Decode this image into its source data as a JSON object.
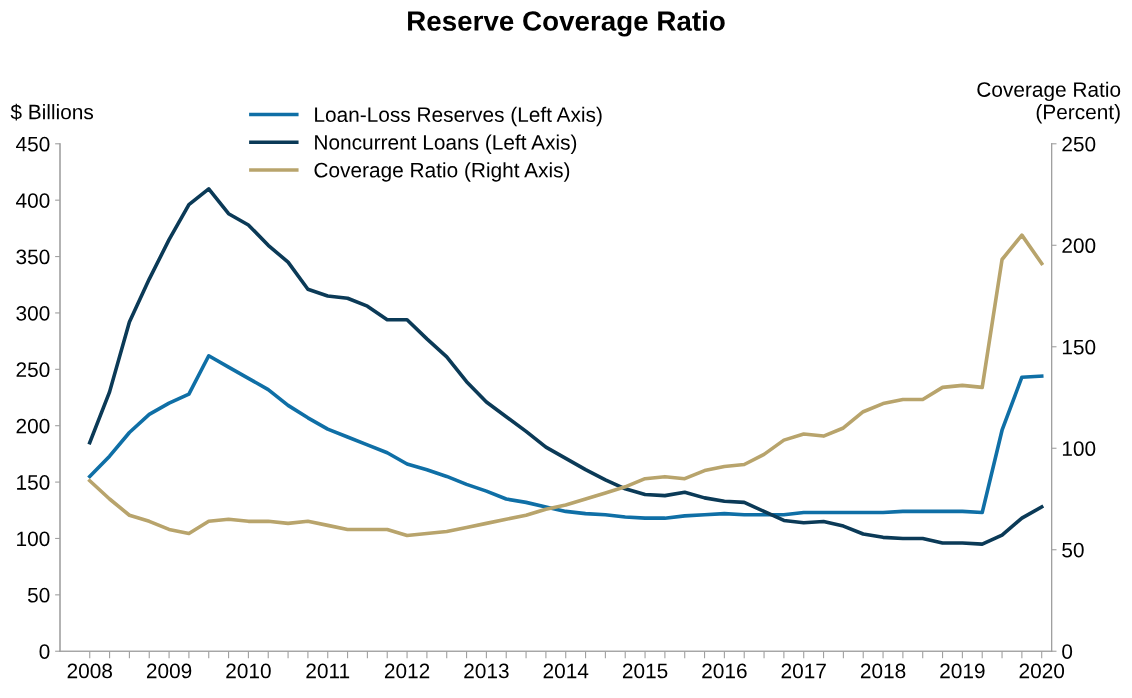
{
  "chart_data": {
    "type": "line",
    "title": "Reserve Coverage Ratio",
    "ylabel": "$ Billions",
    "y2label": "Coverage Ratio\n(Percent)",
    "categories": [
      "2008",
      null,
      null,
      null,
      "2009",
      null,
      null,
      null,
      "2010",
      null,
      null,
      null,
      "2011",
      null,
      null,
      null,
      "2012",
      null,
      null,
      null,
      "2013",
      null,
      null,
      null,
      "2014",
      null,
      null,
      null,
      "2015",
      null,
      null,
      null,
      "2016",
      null,
      null,
      null,
      "2017",
      null,
      null,
      null,
      "2018",
      null,
      null,
      null,
      "2019",
      null,
      null,
      null,
      "2020"
    ],
    "series": [
      {
        "name": "Loan-Loss Reserves (Left Axis)",
        "color": "#0f6fa6",
        "values": [
          155,
          173,
          194,
          210,
          220,
          228,
          262,
          252,
          242,
          232,
          218,
          207,
          197,
          190,
          183,
          176,
          166,
          161,
          155,
          148,
          142,
          135,
          132,
          128,
          124,
          122,
          121,
          119,
          118,
          118,
          120,
          121,
          122,
          121,
          121,
          121,
          123,
          123,
          123,
          123,
          123,
          124,
          124,
          124,
          124,
          123,
          196,
          243,
          244
        ]
      },
      {
        "name": "Noncurrent Loans (Left Axis)",
        "color": "#0b3a57",
        "values": [
          185,
          230,
          292,
          330,
          365,
          396,
          410,
          388,
          378,
          360,
          345,
          321,
          315,
          313,
          306,
          294,
          294,
          277,
          261,
          239,
          221,
          208,
          195,
          181,
          171,
          161,
          152,
          144,
          139,
          138,
          141,
          136,
          133,
          132,
          124,
          116,
          114,
          115,
          111,
          104,
          101,
          100,
          100,
          96,
          96,
          95,
          103,
          118,
          128
        ]
      },
      {
        "name": "Coverage Ratio (Right Axis)",
        "color": "#b8a46c",
        "axis": "y2",
        "values": [
          84,
          75,
          67,
          64,
          60,
          58,
          64,
          65,
          64,
          64,
          63,
          64,
          62,
          60,
          60,
          60,
          57,
          58,
          59,
          61,
          63,
          65,
          67,
          70,
          72,
          75,
          78,
          81,
          85,
          86,
          85,
          89,
          91,
          92,
          97,
          104,
          107,
          106,
          110,
          118,
          122,
          124,
          124,
          130,
          131,
          130,
          193,
          205,
          191
        ]
      }
    ],
    "ylim": [
      0,
      450
    ],
    "yticks": [
      0,
      50,
      100,
      150,
      200,
      250,
      300,
      350,
      400,
      450
    ],
    "y2lim": [
      0,
      250
    ],
    "y2ticks": [
      0,
      50,
      100,
      150,
      200,
      250
    ],
    "grid": false,
    "legend": "top",
    "marker": "none",
    "line_style": "solid"
  }
}
